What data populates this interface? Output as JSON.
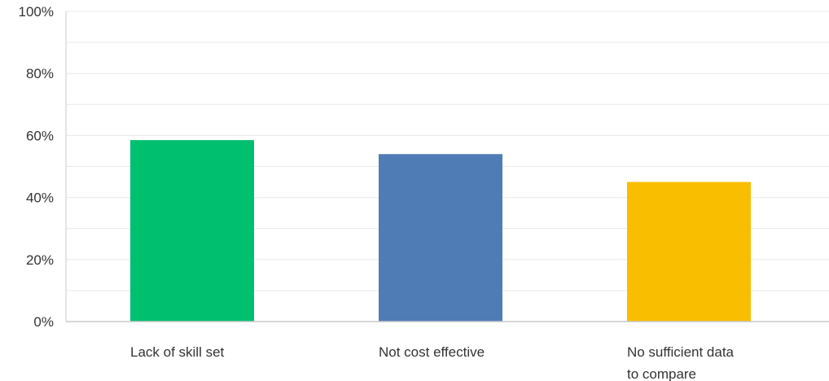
{
  "chart_data": {
    "type": "bar",
    "categories": [
      [
        "Lack of skill set"
      ],
      [
        "Not cost effective"
      ],
      [
        "No sufficient data",
        "to compare"
      ]
    ],
    "values": [
      58.5,
      54,
      45
    ],
    "colors": [
      "#00bf6f",
      "#507cb6",
      "#f9be00"
    ],
    "ylim": [
      0,
      100
    ],
    "yticks": [
      0,
      20,
      40,
      60,
      80,
      100
    ],
    "ytick_labels": [
      "0%",
      "20%",
      "40%",
      "60%",
      "80%",
      "100%"
    ],
    "minor_gridlines": [
      10,
      30,
      50,
      70,
      90
    ],
    "grid": true,
    "legend": false,
    "title": "",
    "xlabel": "",
    "ylabel": ""
  }
}
